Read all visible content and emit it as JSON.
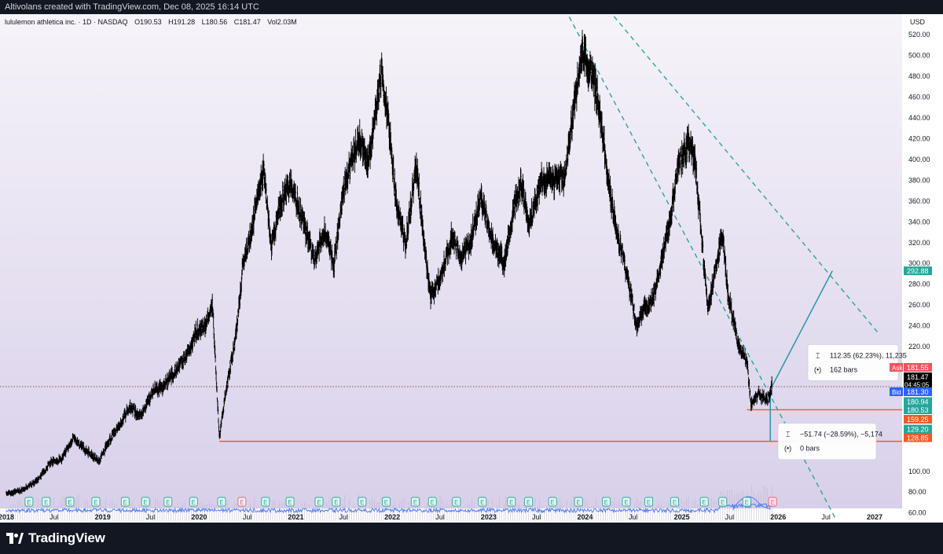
{
  "header": {
    "credit": "Altivolans created with TradingView.com, Dec 08, 2025 16:14 UTC"
  },
  "legend": {
    "symbol": "lululemon athletica inc. · 1D · NASDAQ",
    "open": "O190.53",
    "high": "H191.28",
    "low": "L180.56",
    "close": "C181.47",
    "volume": "Vol2.03M"
  },
  "footer": {
    "brand": "TradingView"
  },
  "colors": {
    "price_bar": "#000000",
    "trend_line": "#26a69a",
    "support_line": "#f05a24",
    "measure_line": "#2a95a8",
    "volume_line": "#4f7cf7",
    "earnings_icon": "#26a69a",
    "bg_top": "#f6f3f9",
    "bg_bottom": "#d8d0ea",
    "ask_badge": "#f7525f",
    "bid_badge": "#2962ff"
  },
  "chart_data": {
    "type": "line",
    "price_scale": {
      "currency": "USD",
      "ylim": [
        50,
        530
      ],
      "ticks": [
        60,
        80,
        100,
        200,
        220,
        240,
        260,
        280,
        300,
        320,
        340,
        360,
        380,
        400,
        420,
        440,
        460,
        480,
        500,
        520
      ],
      "tick_labels": [
        "60.00",
        "80.00",
        "100.00",
        "200.00",
        "220.00",
        "240.00",
        "260.00",
        "280.00",
        "300.00",
        "320.00",
        "340.00",
        "360.00",
        "380.00",
        "400.00",
        "420.00",
        "440.00",
        "460.00",
        "480.00",
        "500.00",
        "520.00"
      ]
    },
    "time_axis": {
      "labels": [
        "2018",
        "Jul",
        "2019",
        "Jul",
        "2020",
        "Jul",
        "2021",
        "Jul",
        "2022",
        "Jul",
        "2023",
        "Jul",
        "2024",
        "Jul",
        "2025",
        "Jul",
        "2026",
        "Jul",
        "2027"
      ],
      "dates": [
        "2018-01-01",
        "2018-07-01",
        "2019-01-01",
        "2019-07-01",
        "2020-01-01",
        "2020-07-01",
        "2021-01-01",
        "2021-07-01",
        "2022-01-01",
        "2022-07-01",
        "2023-01-01",
        "2023-07-01",
        "2024-01-01",
        "2024-07-01",
        "2025-01-01",
        "2025-07-01",
        "2026-01-01",
        "2026-07-01",
        "2027-01-01"
      ],
      "bold": [
        true,
        false,
        true,
        false,
        true,
        false,
        true,
        false,
        true,
        false,
        true,
        false,
        true,
        false,
        true,
        false,
        true,
        false,
        true
      ]
    },
    "series": [
      {
        "points": [
          [
            "2018-01-01",
            78
          ],
          [
            "2018-03-01",
            82
          ],
          [
            "2018-05-01",
            92
          ],
          [
            "2018-06-15",
            108
          ],
          [
            "2018-08-01",
            112
          ],
          [
            "2018-09-10",
            132
          ],
          [
            "2018-10-25",
            121
          ],
          [
            "2018-12-20",
            110
          ],
          [
            "2019-01-20",
            127
          ],
          [
            "2019-03-01",
            143
          ],
          [
            "2019-04-15",
            162
          ],
          [
            "2019-05-25",
            153
          ],
          [
            "2019-07-10",
            178
          ],
          [
            "2019-08-20",
            182
          ],
          [
            "2019-10-01",
            196
          ],
          [
            "2019-11-15",
            210
          ],
          [
            "2019-12-20",
            235
          ],
          [
            "2020-01-25",
            240
          ],
          [
            "2020-02-20",
            262
          ],
          [
            "2020-03-18",
            132
          ],
          [
            "2020-04-10",
            175
          ],
          [
            "2020-05-20",
            232
          ],
          [
            "2020-06-15",
            298
          ],
          [
            "2020-07-20",
            335
          ],
          [
            "2020-09-01",
            392
          ],
          [
            "2020-10-01",
            315
          ],
          [
            "2020-10-30",
            355
          ],
          [
            "2020-12-15",
            378
          ],
          [
            "2021-01-15",
            350
          ],
          [
            "2021-02-20",
            322
          ],
          [
            "2021-03-10",
            303
          ],
          [
            "2021-04-20",
            332
          ],
          [
            "2021-05-25",
            298
          ],
          [
            "2021-07-01",
            370
          ],
          [
            "2021-07-30",
            400
          ],
          [
            "2021-09-01",
            420
          ],
          [
            "2021-10-01",
            395
          ],
          [
            "2021-11-22",
            482
          ],
          [
            "2021-12-15",
            445
          ],
          [
            "2022-01-15",
            360
          ],
          [
            "2022-02-20",
            318
          ],
          [
            "2022-03-15",
            360
          ],
          [
            "2022-04-01",
            395
          ],
          [
            "2022-05-25",
            268
          ],
          [
            "2022-06-30",
            285
          ],
          [
            "2022-08-15",
            325
          ],
          [
            "2022-09-20",
            305
          ],
          [
            "2022-10-20",
            318
          ],
          [
            "2022-12-01",
            365
          ],
          [
            "2023-01-15",
            320
          ],
          [
            "2023-03-01",
            300
          ],
          [
            "2023-04-10",
            358
          ],
          [
            "2023-05-05",
            378
          ],
          [
            "2023-06-01",
            335
          ],
          [
            "2023-07-20",
            382
          ],
          [
            "2023-09-01",
            380
          ],
          [
            "2023-10-15",
            382
          ],
          [
            "2023-11-20",
            448
          ],
          [
            "2023-12-20",
            508
          ],
          [
            "2024-01-20",
            485
          ],
          [
            "2024-02-15",
            462
          ],
          [
            "2024-03-20",
            400
          ],
          [
            "2024-04-10",
            360
          ],
          [
            "2024-05-10",
            320
          ],
          [
            "2024-06-10",
            285
          ],
          [
            "2024-07-15",
            240
          ],
          [
            "2024-08-10",
            255
          ],
          [
            "2024-09-15",
            265
          ],
          [
            "2024-10-15",
            300
          ],
          [
            "2024-11-20",
            345
          ],
          [
            "2024-12-15",
            392
          ],
          [
            "2025-01-25",
            415
          ],
          [
            "2025-02-20",
            400
          ],
          [
            "2025-03-15",
            330
          ],
          [
            "2025-04-10",
            255
          ],
          [
            "2025-05-10",
            295
          ],
          [
            "2025-06-05",
            330
          ],
          [
            "2025-06-25",
            270
          ],
          [
            "2025-08-01",
            225
          ],
          [
            "2025-09-05",
            205
          ],
          [
            "2025-09-20",
            165
          ],
          [
            "2025-10-20",
            175
          ],
          [
            "2025-11-20",
            168
          ],
          [
            "2025-12-08",
            181.47
          ]
        ]
      }
    ],
    "trend_lines": [
      {
        "from": [
          "2023-04-01",
          640
        ],
        "to": [
          "2026-08-05",
          55
        ]
      },
      {
        "from": [
          "2023-07-01",
          627
        ],
        "to": [
          "2027-01-15",
          233
        ]
      }
    ],
    "support_lines": [
      {
        "from": [
          "2020-03-18",
          128.85
        ],
        "to": [
          "2027-01-15",
          128.85
        ],
        "label": "128.85"
      },
      {
        "from": [
          "2025-09-05",
          159.25
        ],
        "to": [
          "2027-01-15",
          159.25
        ],
        "label": "159.25"
      }
    ],
    "projection": {
      "from": [
        "2025-12-08",
        181.47
      ],
      "to": [
        "2026-07-25",
        292.88
      ]
    },
    "measure": {
      "x": "2025-12-08",
      "from": 181.47,
      "to": 129.2
    },
    "measure_boxes": [
      {
        "range": "112.35 (62.23%), 11,235",
        "bars": "162 bars"
      },
      {
        "range": "−51.74 (−28.59%), −5,174",
        "bars": "0 bars"
      }
    ],
    "price_labels": [
      {
        "kind": "target",
        "value": 292.88,
        "text": "292.88"
      },
      {
        "kind": "ask",
        "value": 181.55,
        "text": "181.55",
        "prefix": "Ask"
      },
      {
        "kind": "last",
        "value": 181.47,
        "text": "181.47",
        "countdown": "04:45:05"
      },
      {
        "kind": "bid",
        "value": 181.3,
        "text": "181.30",
        "prefix": "Bid"
      },
      {
        "kind": "level",
        "value": 180.94,
        "text": "180.94"
      },
      {
        "kind": "level",
        "value": 180.53,
        "text": "180.53"
      },
      {
        "kind": "support",
        "value": 159.25,
        "text": "159.25"
      },
      {
        "kind": "level",
        "value": 129.2,
        "text": "129.20"
      },
      {
        "kind": "support",
        "value": 128.85,
        "text": "128.85"
      }
    ],
    "earnings": [
      "2018-03-28",
      "2018-06-01",
      "2018-08-30",
      "2018-12-06",
      "2019-03-27",
      "2019-06-12",
      "2019-09-05",
      "2019-12-11",
      "2020-03-26",
      "2020-06-11",
      "2020-09-08",
      "2020-12-10",
      "2021-03-30",
      "2021-06-03",
      "2021-09-09",
      "2021-12-09",
      "2022-03-29",
      "2022-06-02",
      "2022-09-01",
      "2022-12-08",
      "2023-03-28",
      "2023-06-01",
      "2023-08-31",
      "2023-12-07",
      "2024-03-21",
      "2024-06-05",
      "2024-08-29",
      "2024-12-05",
      "2025-03-27",
      "2025-06-05",
      "2025-09-04",
      "2025-12-11"
    ],
    "earnings_label": "E"
  }
}
